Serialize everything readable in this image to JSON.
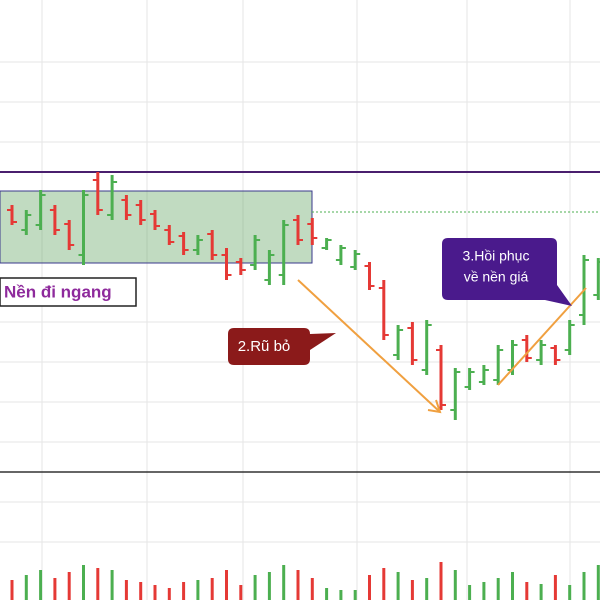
{
  "chart_data": {
    "type": "ohlc",
    "annotations": [
      "Nền đi ngang",
      "2.Rũ bỏ",
      "3.Hồi phục",
      "về nền giá"
    ],
    "up_color": "#4caf50",
    "down_color": "#e53935",
    "ylim": [
      128,
      600
    ],
    "open": [
      390,
      370,
      375,
      390,
      376,
      345,
      420,
      385,
      400,
      395,
      386,
      370,
      364,
      350,
      366,
      345,
      338,
      335,
      320,
      325,
      380,
      376,
      352,
      340,
      333,
      334,
      312,
      245,
      272,
      230,
      250,
      190,
      213,
      218,
      220,
      230,
      260,
      240,
      252,
      250,
      285,
      305
    ],
    "high": [
      395,
      390,
      410,
      395,
      380,
      410,
      428,
      425,
      405,
      400,
      390,
      375,
      368,
      365,
      370,
      352,
      342,
      365,
      350,
      380,
      385,
      382,
      362,
      355,
      350,
      338,
      320,
      275,
      278,
      280,
      255,
      232,
      232,
      235,
      255,
      260,
      265,
      260,
      255,
      280,
      345,
      342
    ],
    "low": [
      375,
      365,
      370,
      365,
      350,
      335,
      385,
      380,
      380,
      375,
      370,
      355,
      345,
      345,
      340,
      320,
      325,
      330,
      315,
      315,
      355,
      355,
      350,
      335,
      330,
      310,
      260,
      240,
      235,
      225,
      190,
      180,
      210,
      215,
      215,
      225,
      238,
      235,
      235,
      245,
      275,
      300
    ],
    "close": [
      378,
      385,
      405,
      370,
      355,
      405,
      390,
      418,
      385,
      380,
      374,
      358,
      350,
      360,
      345,
      325,
      330,
      360,
      345,
      375,
      360,
      362,
      360,
      352,
      346,
      314,
      265,
      270,
      240,
      275,
      195,
      228,
      228,
      230,
      250,
      255,
      242,
      255,
      240,
      275,
      340,
      338
    ],
    "y2lim": [
      0,
      128
    ],
    "volume": [
      20,
      25,
      30,
      22,
      28,
      35,
      32,
      30,
      20,
      18,
      15,
      12,
      18,
      20,
      22,
      30,
      15,
      25,
      28,
      35,
      30,
      22,
      12,
      10,
      10,
      25,
      32,
      28,
      20,
      22,
      38,
      30,
      15,
      18,
      22,
      28,
      18,
      16,
      25,
      15,
      28,
      35
    ]
  }
}
